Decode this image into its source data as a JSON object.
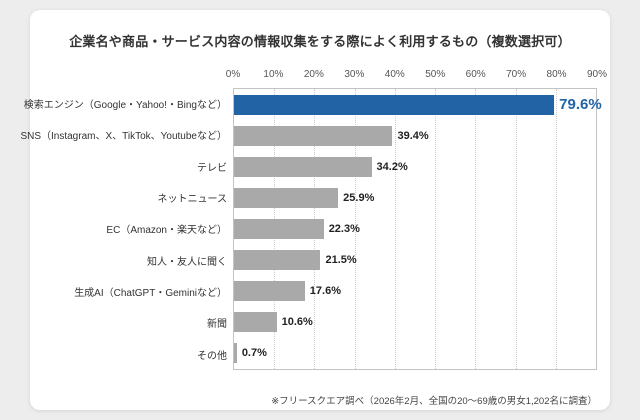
{
  "title": "企業名や商品・サービス内容の情報収集をする際によく利用するもの（複数選択可）",
  "footer_note": "※フリースクエア調べ（2026年2月、全国の20〜69歳の男女1,202名に調査）",
  "chart_data": {
    "type": "bar",
    "orientation": "horizontal",
    "title": "企業名や商品・サービス内容の情報収集をする際によく利用するもの（複数選択可）",
    "categories": [
      "検索エンジン（Google・Yahoo!・Bingなど）",
      "SNS（Instagram、X、TikTok、Youtubeなど）",
      "テレビ",
      "ネットニュース",
      "EC（Amazon・楽天など）",
      "知人・友人に聞く",
      "生成AI（ChatGPT・Geminiなど）",
      "新聞",
      "その他"
    ],
    "values": [
      79.6,
      39.4,
      34.2,
      25.9,
      22.3,
      21.5,
      17.6,
      10.6,
      0.7
    ],
    "value_labels": [
      "79.6%",
      "39.4%",
      "34.2%",
      "25.9%",
      "22.3%",
      "21.5%",
      "17.6%",
      "10.6%",
      "0.7%"
    ],
    "xlim": [
      0,
      90
    ],
    "x_ticks": [
      "0%",
      "10%",
      "20%",
      "30%",
      "40%",
      "50%",
      "60%",
      "70%",
      "80%",
      "90%"
    ],
    "grid": "vertical-dotted",
    "legend": "none",
    "highlight_index": 0,
    "colors": {
      "bar": "#a9a9a9",
      "highlight_bar": "#2163a5",
      "label": "#222222",
      "highlight_label": "#2163a5"
    }
  }
}
